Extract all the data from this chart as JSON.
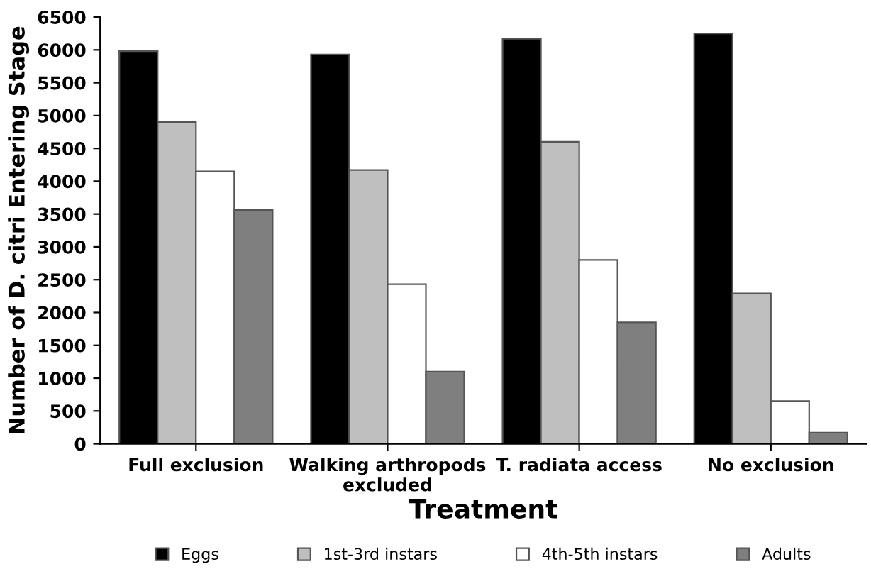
{
  "chart_data": {
    "type": "bar",
    "xlabel": "Treatment",
    "ylabel": "Number of D. citri Entering Stage",
    "categories": [
      "Full exclusion",
      "Walking arthropods\nexcluded",
      "T. radiata access",
      "No exclusion"
    ],
    "series": [
      {
        "name": "Eggs",
        "color": "#000000",
        "values": [
          5980,
          5930,
          6170,
          6250
        ]
      },
      {
        "name": "1st-3rd instars",
        "color": "#bfbfbf",
        "values": [
          4900,
          4170,
          4600,
          2290
        ]
      },
      {
        "name": "4th-5th instars",
        "color": "#ffffff",
        "values": [
          4150,
          2430,
          2800,
          650
        ]
      },
      {
        "name": "Adults",
        "color": "#7f7f7f",
        "values": [
          3560,
          1100,
          1850,
          170
        ]
      }
    ],
    "ylim": [
      0,
      6500
    ],
    "yticks": [
      0,
      500,
      1000,
      1500,
      2000,
      2500,
      3000,
      3500,
      4000,
      4500,
      5000,
      5500,
      6000,
      6500
    ],
    "grid": false,
    "legend": "bottom"
  }
}
